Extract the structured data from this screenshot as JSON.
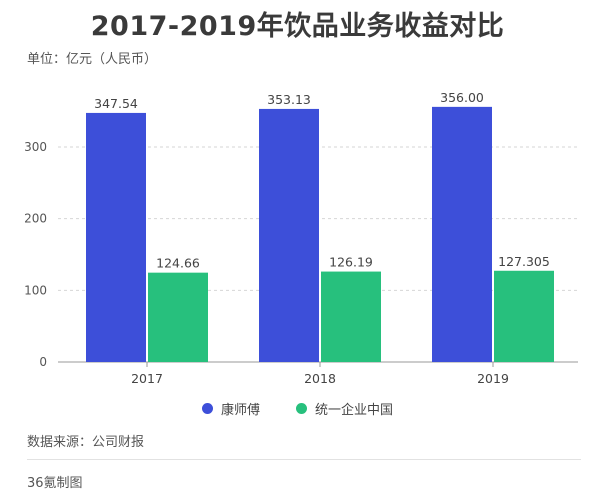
{
  "title": "2017-2019年饮品业务收益对比",
  "unit_label": "单位：亿元（人民币）",
  "source": "数据来源：公司财报",
  "credit": "36氪制图",
  "chart_data": {
    "type": "bar",
    "categories": [
      "2017",
      "2018",
      "2019"
    ],
    "series": [
      {
        "name": "康师傅",
        "values": [
          347.54,
          353.13,
          356.0
        ],
        "labels": [
          "347.54",
          "353.13",
          "356.00"
        ],
        "color": "#3d4fd9"
      },
      {
        "name": "统一企业中国",
        "values": [
          124.66,
          126.19,
          127.305
        ],
        "labels": [
          "124.66",
          "126.19",
          "127.305"
        ],
        "color": "#27c07d"
      }
    ],
    "yticks": [
      0,
      100,
      200,
      300
    ],
    "ylim": [
      0,
      380
    ],
    "grid": true,
    "legend_position": "bottom"
  }
}
